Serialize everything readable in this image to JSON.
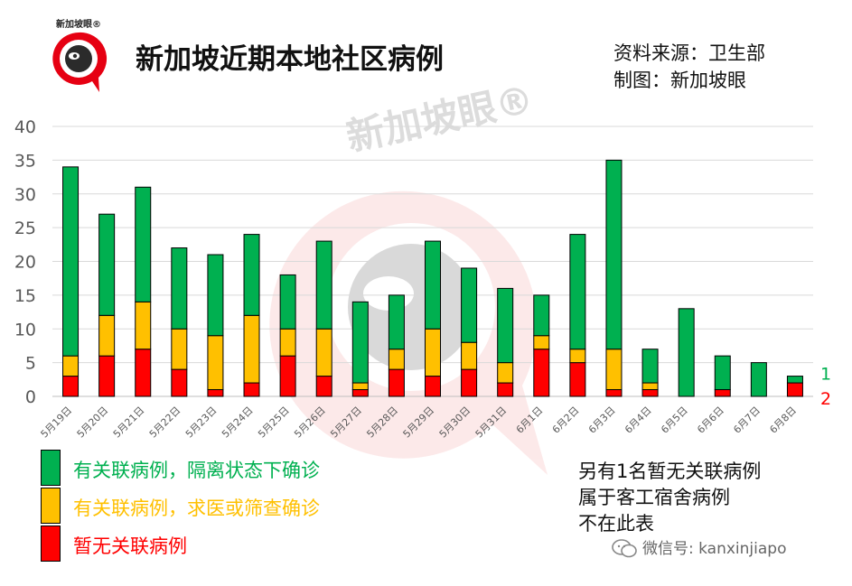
{
  "header": {
    "title": "新加坡近期本地社区病例",
    "source_line1": "资料来源：卫生部",
    "source_line2": "制图：新加坡眼",
    "logo_text": "新加坡眼®",
    "watermark_text": "新加坡眼®"
  },
  "chart_data": {
    "type": "bar",
    "stacked": true,
    "title": "新加坡近期本地社区病例",
    "categories": [
      "5月19日",
      "5月20日",
      "5月21日",
      "5月22日",
      "5月23日",
      "5月24日",
      "5月25日",
      "5月26日",
      "5月27日",
      "5月28日",
      "5月29日",
      "5月30日",
      "5月31日",
      "6月1日",
      "6月2日",
      "6月3日",
      "6月4日",
      "6月5日",
      "6月6日",
      "6月7日",
      "6月8日"
    ],
    "series": [
      {
        "name": "暂无关联病例",
        "color": "#ff0000",
        "values": [
          3,
          6,
          7,
          4,
          1,
          2,
          6,
          3,
          1,
          4,
          3,
          4,
          2,
          7,
          5,
          1,
          1,
          0,
          1,
          0,
          2
        ]
      },
      {
        "name": "有关联病例，求医或筛查确诊",
        "color": "#ffc000",
        "values": [
          3,
          6,
          7,
          6,
          8,
          10,
          4,
          7,
          1,
          3,
          7,
          4,
          3,
          2,
          2,
          6,
          1,
          0,
          0,
          0,
          0
        ]
      },
      {
        "name": "有关联病例，隔离状态下确诊",
        "color": "#00b050",
        "values": [
          28,
          15,
          17,
          12,
          12,
          12,
          8,
          13,
          12,
          8,
          13,
          11,
          11,
          6,
          17,
          28,
          5,
          13,
          5,
          5,
          1
        ]
      }
    ],
    "ylim": [
      0,
      40
    ],
    "yticks": [
      0,
      5,
      10,
      15,
      20,
      25,
      30,
      35,
      40
    ],
    "grid": true,
    "end_labels": [
      {
        "text": "1",
        "color": "#00b050"
      },
      {
        "text": "2",
        "color": "#ff0000"
      }
    ]
  },
  "legend": {
    "items": [
      {
        "label": "有关联病例，隔离状态下确诊",
        "color": "#00b050"
      },
      {
        "label": "有关联病例，求医或筛查确诊",
        "color": "#ffc000"
      },
      {
        "label": "暂无关联病例",
        "color": "#ff0000"
      }
    ]
  },
  "note": {
    "line1": "另有1名暂无关联病例",
    "line2": "属于客工宿舍病例",
    "line3": "不在此表"
  },
  "footer": {
    "wechat": "微信号: kanxinjiapo"
  }
}
